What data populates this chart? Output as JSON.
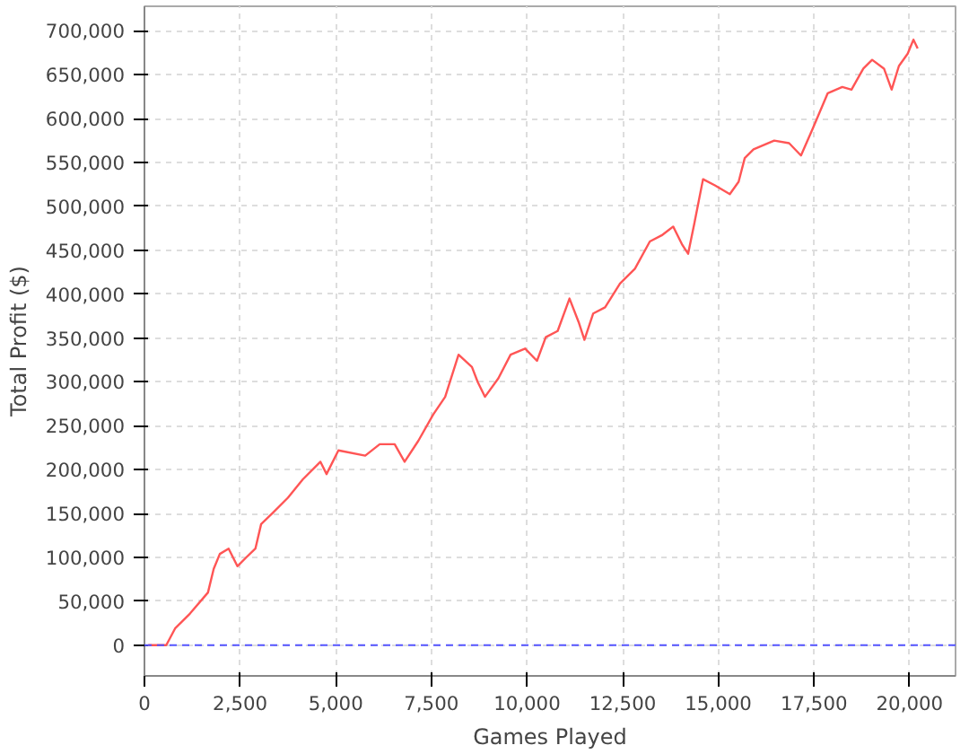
{
  "chart_data": {
    "type": "line",
    "xlabel": "Games Played",
    "ylabel": "Total Profit ($)",
    "x": [
      100,
      570,
      800,
      1190,
      1660,
      1810,
      1970,
      2200,
      2430,
      2660,
      2900,
      3050,
      3360,
      3750,
      4140,
      4600,
      4760,
      5070,
      5770,
      6150,
      6540,
      6800,
      7160,
      7550,
      7860,
      8210,
      8560,
      8710,
      8900,
      9250,
      9570,
      9950,
      10260,
      10490,
      10800,
      11110,
      11350,
      11500,
      11730,
      12040,
      12430,
      12820,
      13210,
      13520,
      13820,
      14060,
      14210,
      14370,
      14600,
      14910,
      15300,
      15530,
      15690,
      15920,
      16460,
      16850,
      17160,
      17470,
      17860,
      18240,
      18480,
      18790,
      19020,
      19330,
      19530,
      19720,
      19950,
      20100,
      20210
    ],
    "series": [
      {
        "color": "#ff5555",
        "values": [
          0,
          0,
          19000,
          36000,
          60000,
          87000,
          104000,
          110000,
          90000,
          100000,
          110000,
          138000,
          151000,
          168000,
          189000,
          209000,
          195000,
          222000,
          216000,
          229000,
          229000,
          209000,
          233000,
          263000,
          283000,
          331000,
          317000,
          300000,
          283000,
          304000,
          331000,
          338000,
          324000,
          351000,
          358000,
          395000,
          368000,
          348000,
          378000,
          385000,
          412000,
          429000,
          460000,
          467000,
          477000,
          456000,
          446000,
          480000,
          531000,
          524000,
          514000,
          528000,
          555000,
          565000,
          575000,
          572000,
          558000,
          589000,
          629000,
          636000,
          633000,
          657000,
          667000,
          657000,
          633000,
          660000,
          674000,
          690000,
          680000
        ]
      }
    ],
    "xlim": [
      0,
      21200
    ],
    "ylim": [
      -35000,
      728000
    ],
    "xticks": [
      {
        "value": 0,
        "label": "0"
      },
      {
        "value": 2500,
        "label": "2,500"
      },
      {
        "value": 5000,
        "label": "5,000"
      },
      {
        "value": 7500,
        "label": "7,500"
      },
      {
        "value": 10000,
        "label": "10,000"
      },
      {
        "value": 12500,
        "label": "12,500"
      },
      {
        "value": 15000,
        "label": "15,000"
      },
      {
        "value": 17500,
        "label": "17,500"
      },
      {
        "value": 20000,
        "label": "20,000"
      }
    ],
    "yticks": [
      {
        "value": 0,
        "label": "0"
      },
      {
        "value": 50000,
        "label": "50,000"
      },
      {
        "value": 100000,
        "label": "100,000"
      },
      {
        "value": 150000,
        "label": "150,000"
      },
      {
        "value": 200000,
        "label": "200,000"
      },
      {
        "value": 250000,
        "label": "250,000"
      },
      {
        "value": 300000,
        "label": "300,000"
      },
      {
        "value": 350000,
        "label": "350,000"
      },
      {
        "value": 400000,
        "label": "400,000"
      },
      {
        "value": 450000,
        "label": "450,000"
      },
      {
        "value": 500000,
        "label": "500,000"
      },
      {
        "value": 550000,
        "label": "550,000"
      },
      {
        "value": 600000,
        "label": "600,000"
      },
      {
        "value": 650000,
        "label": "650,000"
      },
      {
        "value": 700000,
        "label": "700,000"
      }
    ],
    "ref_lines": [
      {
        "axis": "y",
        "value": 0,
        "color": "#5555ff",
        "line_style": "dashed"
      }
    ],
    "grid": true,
    "line_style": "solid",
    "marker": "none"
  }
}
